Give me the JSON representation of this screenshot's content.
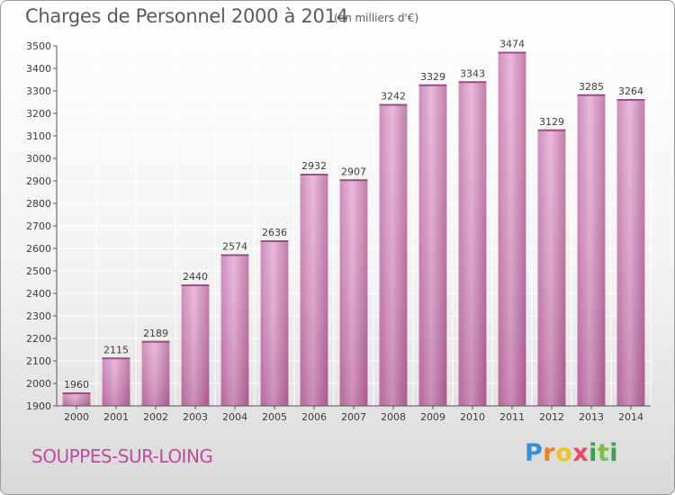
{
  "title": "Charges de Personnel 2000 à 2014",
  "subtitle": "(en milliers d'€)",
  "commune": "SOUPPES-SUR-LOING",
  "brand": "Proxiti",
  "colors": {
    "bar": "#d68fbe",
    "bar_light": "#e4aed2",
    "bar_dark": "#b8669c",
    "grid": "#ffffff",
    "commune_text": "#c14a9c"
  },
  "chart_data": {
    "type": "bar",
    "title": "Charges de Personnel 2000 à 2014",
    "subtitle": "(en milliers d'€)",
    "xlabel": "",
    "ylabel": "",
    "categories": [
      "2000",
      "2001",
      "2002",
      "2003",
      "2004",
      "2005",
      "2006",
      "2007",
      "2008",
      "2009",
      "2010",
      "2011",
      "2012",
      "2013",
      "2014"
    ],
    "values": [
      1960,
      2115,
      2189,
      2440,
      2574,
      2636,
      2932,
      2907,
      3242,
      3329,
      3343,
      3474,
      3129,
      3285,
      3264
    ],
    "ylim": [
      1900,
      3500
    ],
    "yticks": [
      1900,
      2000,
      2100,
      2200,
      2300,
      2400,
      2500,
      2600,
      2700,
      2800,
      2900,
      3000,
      3100,
      3200,
      3300,
      3400,
      3500
    ],
    "grid": true,
    "legend": "none",
    "data_labels": true
  }
}
